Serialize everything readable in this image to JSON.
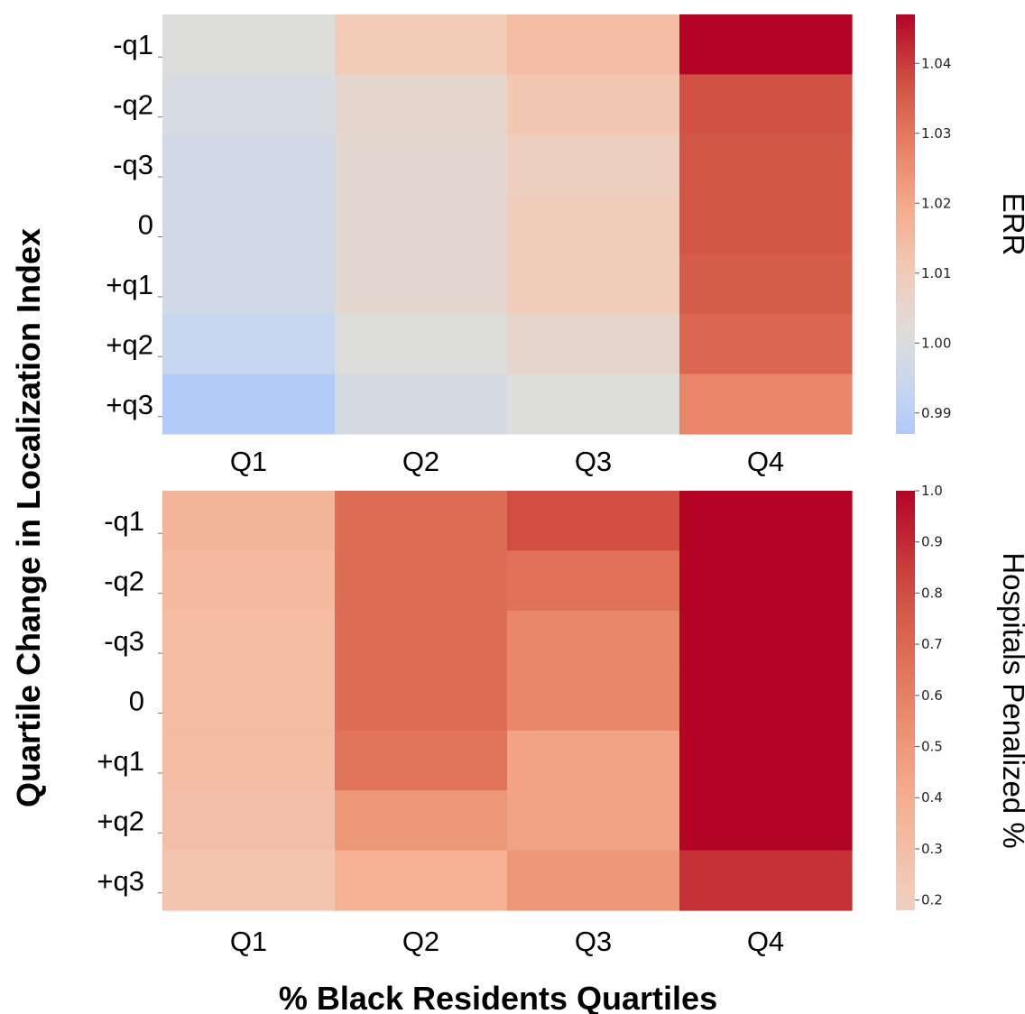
{
  "figure": {
    "shared_ylabel": "Quartile Change in Localization Index",
    "shared_xlabel": "% Black Residents Quartiles"
  },
  "chart_data": [
    {
      "type": "heatmap",
      "colormap": "coolwarm",
      "x_categories": [
        "Q1",
        "Q2",
        "Q3",
        "Q4"
      ],
      "y_categories": [
        "-q1",
        "-q2",
        "-q3",
        "0",
        "+q1",
        "+q2",
        "+q3"
      ],
      "colorbar_label": "ERR",
      "colorbar_range": [
        0.987,
        1.047
      ],
      "colorbar_ticks": [
        0.99,
        1.0,
        1.01,
        1.02,
        1.03,
        1.04
      ],
      "colorbar_tick_labels": [
        "0.99",
        "1.00",
        "1.01",
        "1.02",
        "1.03",
        "1.04"
      ],
      "values": [
        [
          1.001,
          1.01,
          1.014,
          1.047
        ],
        [
          0.999,
          1.005,
          1.011,
          1.037
        ],
        [
          0.997,
          1.004,
          1.008,
          1.036
        ],
        [
          0.997,
          1.004,
          1.009,
          1.036
        ],
        [
          0.997,
          1.004,
          1.009,
          1.035
        ],
        [
          0.994,
          1.001,
          1.005,
          1.033
        ],
        [
          0.988,
          0.998,
          1.001,
          1.027
        ]
      ]
    },
    {
      "type": "heatmap",
      "colormap": "coolwarm",
      "x_categories": [
        "Q1",
        "Q2",
        "Q3",
        "Q4"
      ],
      "y_categories": [
        "-q1",
        "-q2",
        "-q3",
        "0",
        "+q1",
        "+q2",
        "+q3"
      ],
      "colorbar_label": "Hospitals Penalized %",
      "colorbar_range": [
        0.18,
        1.0
      ],
      "colorbar_ticks": [
        0.2,
        0.3,
        0.4,
        0.5,
        0.6,
        0.7,
        0.8,
        0.9,
        1.0
      ],
      "colorbar_tick_labels": [
        "0.2",
        "0.3",
        "0.4",
        "0.5",
        "0.6",
        "0.7",
        "0.8",
        "0.9",
        "1.0"
      ],
      "values": [
        [
          0.36,
          0.68,
          0.8,
          1.0
        ],
        [
          0.33,
          0.68,
          0.66,
          1.0
        ],
        [
          0.31,
          0.68,
          0.58,
          1.0
        ],
        [
          0.31,
          0.68,
          0.58,
          1.0
        ],
        [
          0.31,
          0.65,
          0.45,
          1.0
        ],
        [
          0.29,
          0.5,
          0.45,
          1.0
        ],
        [
          0.26,
          0.38,
          0.5,
          0.88
        ]
      ]
    }
  ]
}
